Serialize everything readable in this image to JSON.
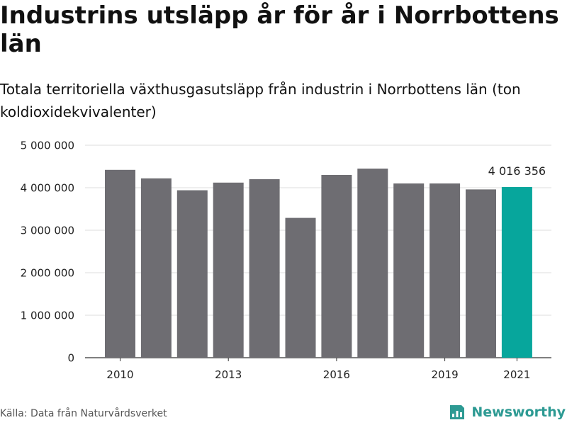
{
  "title": "Industrins utsläpp år för år i Norrbottens län",
  "subtitle": "Totala territoriella växthusgasutsläpp från industrin i Norrbottens län (ton koldioxidekvivalenter)",
  "source": "Källa: Data från Naturvårdsverket",
  "brand": {
    "name": "Newsworthy",
    "icon": "newsworthy-logo-icon"
  },
  "colors": {
    "bar": "#6e6d72",
    "highlight": "#07a69c",
    "grid": "#dddddd",
    "axis": "#333333"
  },
  "chart_data": {
    "type": "bar",
    "categories": [
      "2010",
      "2011",
      "2012",
      "2013",
      "2014",
      "2015",
      "2016",
      "2017",
      "2018",
      "2019",
      "2020",
      "2021"
    ],
    "values": [
      4420000,
      4220000,
      3940000,
      4120000,
      4200000,
      3290000,
      4300000,
      4450000,
      4100000,
      4100000,
      3960000,
      4016356
    ],
    "highlight_index": 11,
    "highlight_label": "4 016 356",
    "x_tick_labels": [
      "2010",
      "2013",
      "2016",
      "2019",
      "2021"
    ],
    "y_tick_labels": [
      "0",
      "1 000 000",
      "2 000 000",
      "3 000 000",
      "4 000 000",
      "5 000 000"
    ],
    "y_ticks": [
      0,
      1000000,
      2000000,
      3000000,
      4000000,
      5000000
    ],
    "ylim": [
      0,
      5000000
    ],
    "grid": true
  }
}
